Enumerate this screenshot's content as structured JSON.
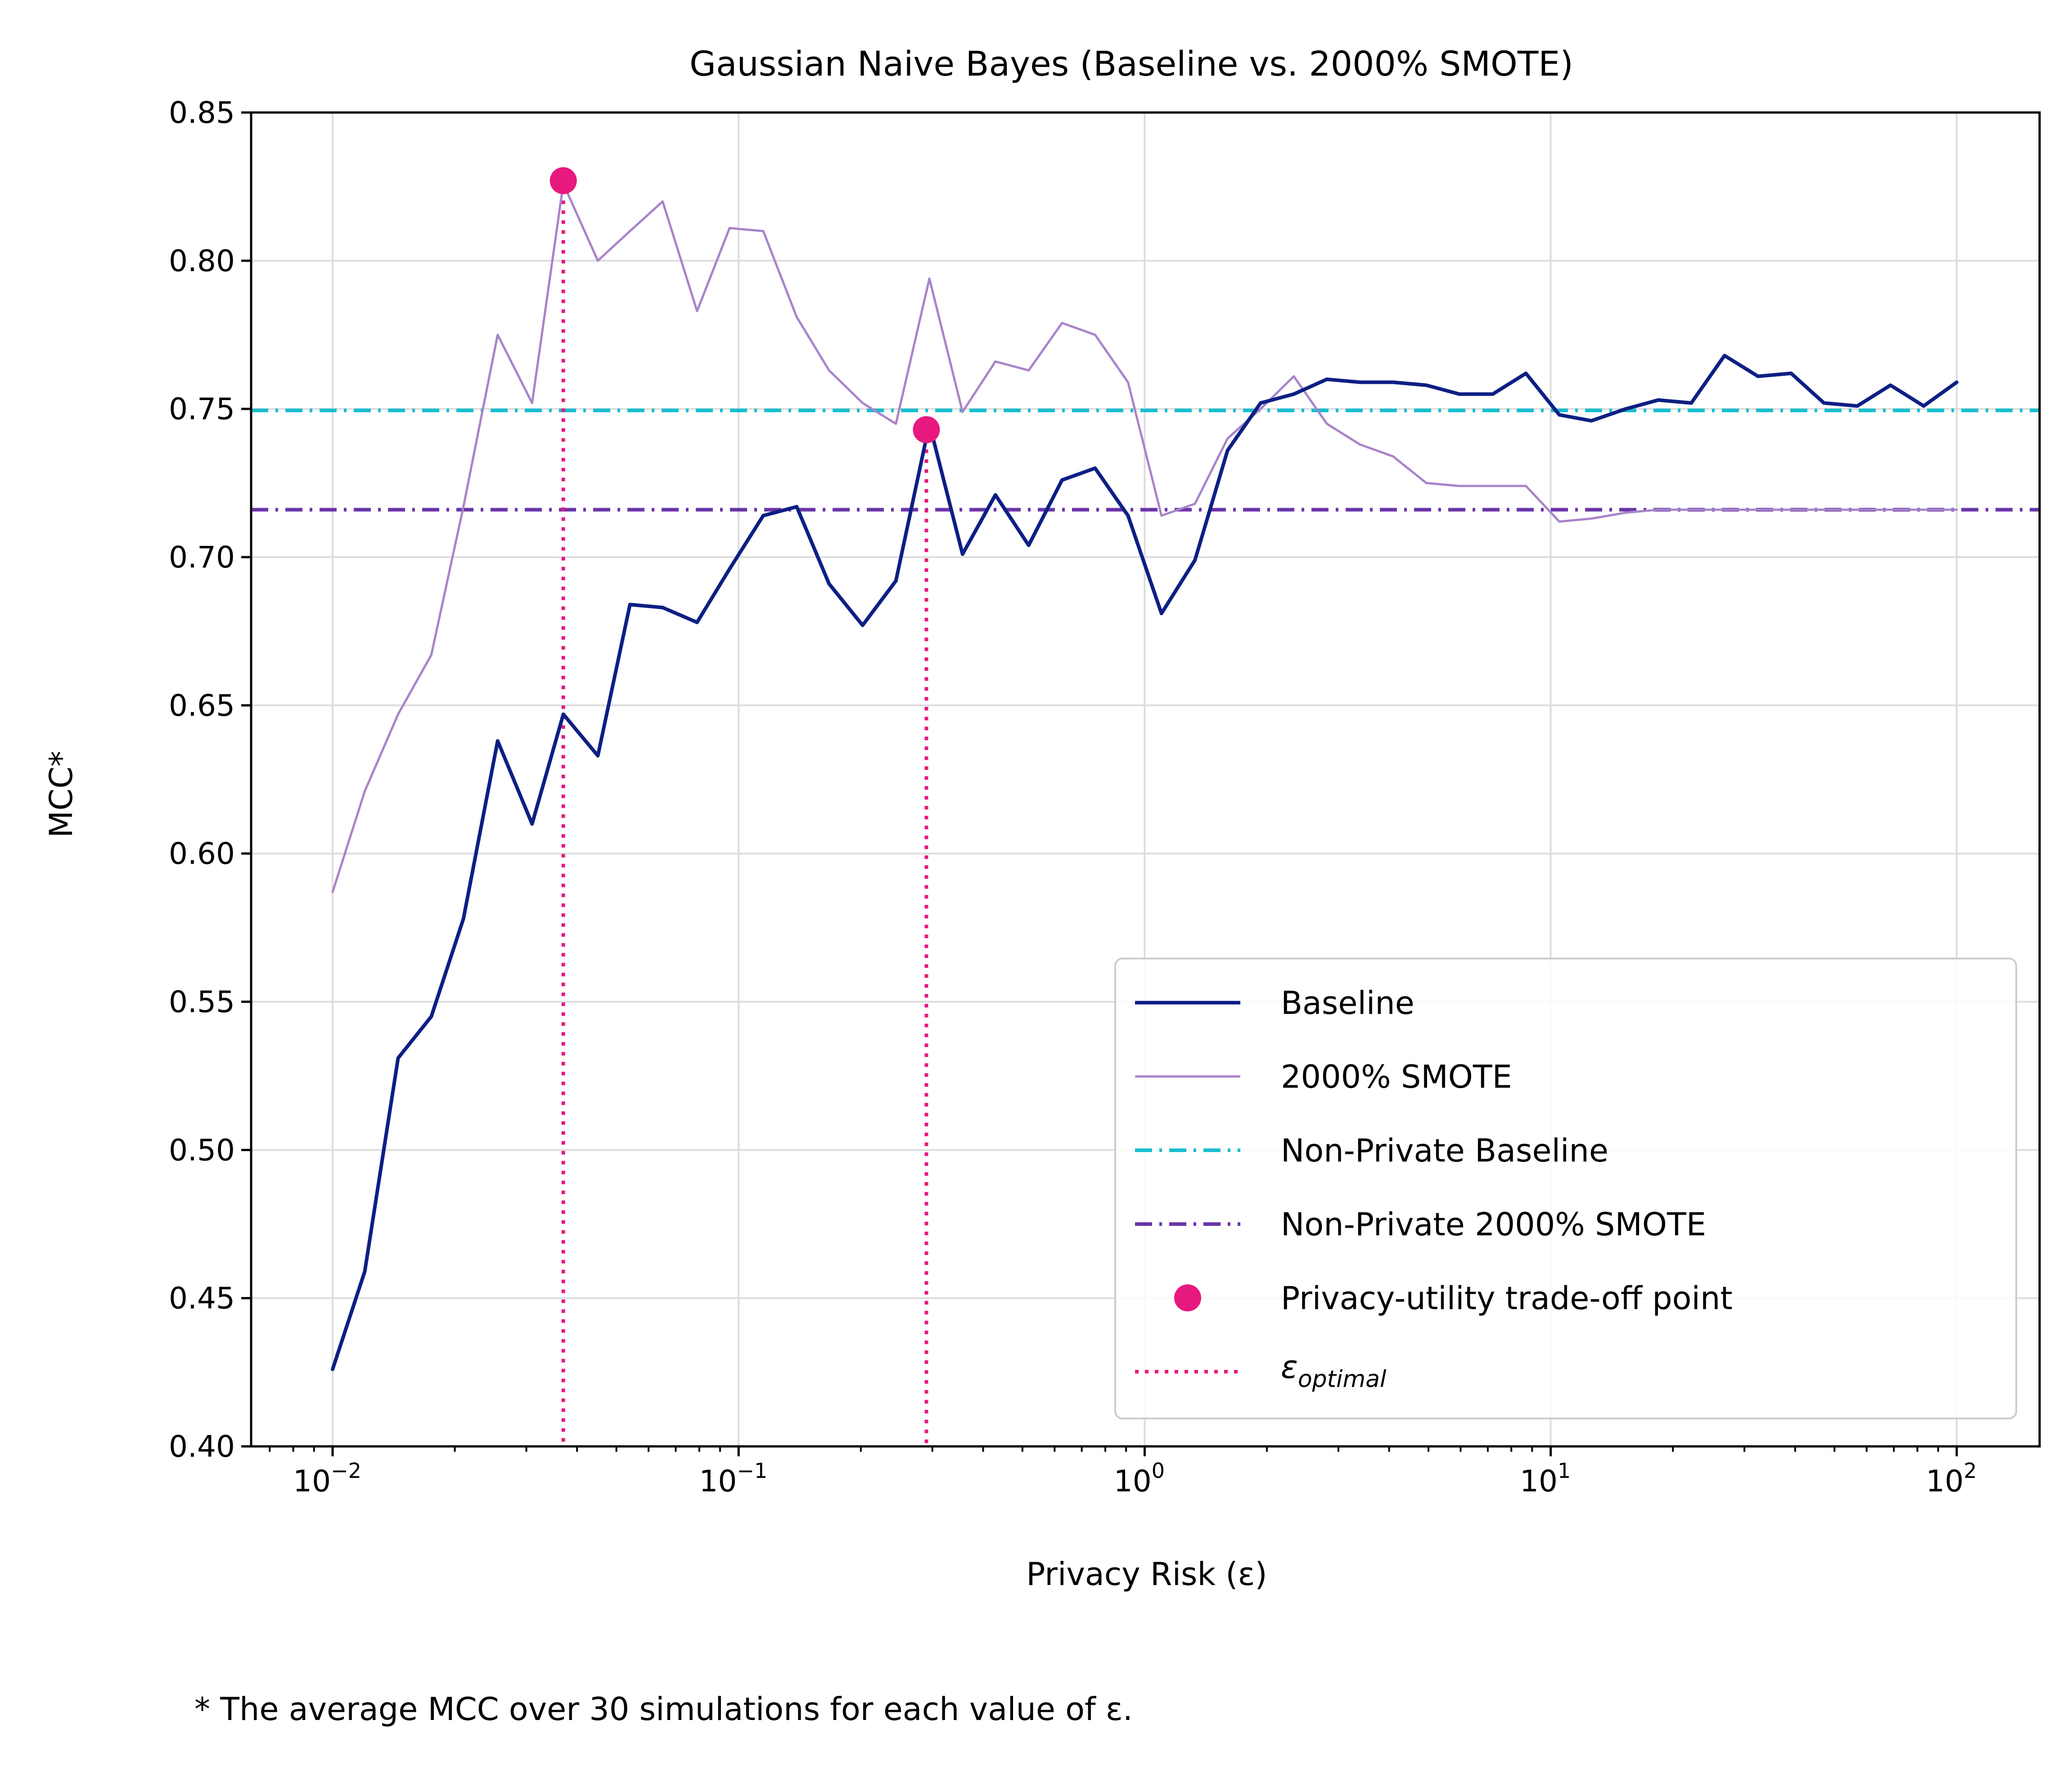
{
  "chart_data": {
    "type": "line",
    "title": "Gaussian Naive Bayes (Baseline vs. 2000% SMOTE)",
    "xlabel": "Privacy Risk (ε)",
    "ylabel": "MCC*",
    "footnote": "* The average MCC over 30 simulations for each value of ε.",
    "x_scale": "log",
    "xlim": [
      0.0063,
      160
    ],
    "ylim": [
      0.4,
      0.85
    ],
    "grid": true,
    "legend_position": "lower-right",
    "x_ticks": [
      {
        "value": 0.01,
        "base": "10",
        "exp": "−2"
      },
      {
        "value": 0.1,
        "base": "10",
        "exp": "−1"
      },
      {
        "value": 1,
        "base": "10",
        "exp": "0"
      },
      {
        "value": 10,
        "base": "10",
        "exp": "1"
      },
      {
        "value": 100,
        "base": "10",
        "exp": "2"
      }
    ],
    "y_ticks": [
      {
        "value": 0.4,
        "label": "0.40"
      },
      {
        "value": 0.45,
        "label": "0.45"
      },
      {
        "value": 0.5,
        "label": "0.50"
      },
      {
        "value": 0.55,
        "label": "0.55"
      },
      {
        "value": 0.6,
        "label": "0.60"
      },
      {
        "value": 0.65,
        "label": "0.65"
      },
      {
        "value": 0.7,
        "label": "0.70"
      },
      {
        "value": 0.75,
        "label": "0.75"
      },
      {
        "value": 0.8,
        "label": "0.80"
      },
      {
        "value": 0.85,
        "label": "0.85"
      }
    ],
    "x": [
      0.01,
      0.012,
      0.0145,
      0.0175,
      0.021,
      0.0255,
      0.031,
      0.037,
      0.045,
      0.054,
      0.065,
      0.079,
      0.095,
      0.115,
      0.139,
      0.167,
      0.202,
      0.244,
      0.295,
      0.356,
      0.429,
      0.518,
      0.626,
      0.755,
      0.91,
      1.1,
      1.33,
      1.6,
      1.93,
      2.33,
      2.81,
      3.39,
      4.09,
      4.94,
      5.96,
      7.2,
      8.69,
      10.5,
      12.6,
      15.3,
      18.4,
      22.2,
      26.8,
      32.4,
      39.1,
      47.1,
      56.9,
      68.7,
      82.9,
      100
    ],
    "series": [
      {
        "name": "Baseline",
        "color": "#0d1f84",
        "style": "solid",
        "values": [
          0.426,
          0.459,
          0.531,
          0.545,
          0.578,
          0.638,
          0.61,
          0.647,
          0.633,
          0.684,
          0.683,
          0.678,
          0.696,
          0.714,
          0.717,
          0.691,
          0.677,
          0.692,
          0.745,
          0.701,
          0.721,
          0.704,
          0.726,
          0.73,
          0.714,
          0.681,
          0.699,
          0.736,
          0.752,
          0.755,
          0.76,
          0.759,
          0.759,
          0.758,
          0.755,
          0.755,
          0.762,
          0.748,
          0.746,
          0.75,
          0.753,
          0.752,
          0.768,
          0.761,
          0.762,
          0.752,
          0.751,
          0.758,
          0.751,
          0.759
        ]
      },
      {
        "name": "2000% SMOTE",
        "color": "#a884c9",
        "style": "solid",
        "values": [
          0.587,
          0.621,
          0.647,
          0.667,
          0.717,
          0.775,
          0.752,
          0.826,
          0.8,
          0.81,
          0.82,
          0.783,
          0.811,
          0.81,
          0.781,
          0.763,
          0.752,
          0.745,
          0.794,
          0.749,
          0.766,
          0.763,
          0.779,
          0.775,
          0.759,
          0.714,
          0.718,
          0.74,
          0.75,
          0.761,
          0.745,
          0.738,
          0.734,
          0.725,
          0.724,
          0.724,
          0.724,
          0.712,
          0.713,
          0.715,
          0.716,
          0.716,
          0.716,
          0.716,
          0.716,
          0.716,
          0.716,
          0.716,
          0.716,
          0.716
        ]
      }
    ],
    "reference_lines": [
      {
        "name": "Non-Private Baseline",
        "y": 0.7495,
        "color": "#17becf",
        "style": "dashdot"
      },
      {
        "name": "Non-Private 2000% SMOTE",
        "y": 0.716,
        "color": "#6a35a8",
        "style": "dashdot"
      }
    ],
    "tradeoff_points": {
      "name": "Privacy-utility trade-off point",
      "color": "#e7197f",
      "points": [
        {
          "x": 0.037,
          "y": 0.827
        },
        {
          "x": 0.29,
          "y": 0.743
        }
      ]
    },
    "epsilon_optimal": {
      "name_symbol": "ε",
      "name_subscript": "optimal",
      "color": "#e7197f",
      "style": "dotted",
      "x": [
        0.037,
        0.29
      ]
    }
  }
}
